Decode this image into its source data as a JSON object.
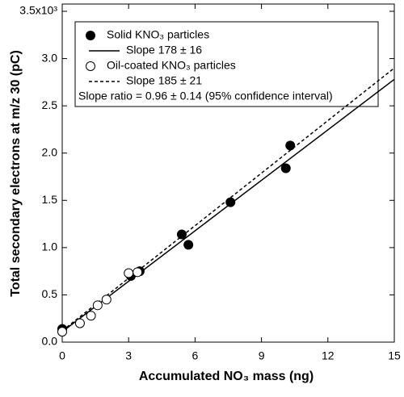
{
  "chart_data": {
    "type": "scatter",
    "xlabel": "Accumulated NO₃ mass (ng)",
    "ylabel": "Total secondary electrons at m/z 30 (pC)",
    "xlim": [
      0,
      15
    ],
    "ylim": [
      0,
      3.5
    ],
    "xticks": [
      0,
      3,
      6,
      9,
      12,
      15
    ],
    "yticks": [
      {
        "value": 0,
        "label": "0.0"
      },
      0.5,
      {
        "value": 1,
        "label": "1.0"
      },
      1.5,
      {
        "value": 2,
        "label": "2.0"
      },
      2.5,
      {
        "value": 3,
        "label": "3.0"
      },
      {
        "value": 3.5,
        "label": "3.5x10³"
      }
    ],
    "series": [
      {
        "name": "Solid KNO₃ particles",
        "marker": "filled",
        "color": "#000000",
        "x": [
          0,
          3.1,
          3.5,
          5.4,
          5.7,
          7.6,
          10.1,
          10.3
        ],
        "values": [
          0.14,
          0.7,
          0.75,
          1.14,
          1.03,
          1.48,
          1.84,
          2.08
        ]
      },
      {
        "name": "Slope 178 ± 16",
        "line": "solid",
        "color": "#000000",
        "x": [
          0,
          15
        ],
        "values": [
          0.11,
          2.78
        ]
      },
      {
        "name": "Oil-coated KNO₃ particles",
        "marker": "open",
        "color": "#000000",
        "x": [
          0,
          0.8,
          1.3,
          1.6,
          2.0,
          3.0,
          3.4
        ],
        "values": [
          0.11,
          0.2,
          0.28,
          0.39,
          0.45,
          0.73,
          0.74
        ]
      },
      {
        "name": "Slope 185 ± 21",
        "line": "dashed",
        "color": "#000000",
        "x": [
          0,
          15
        ],
        "values": [
          0.12,
          2.9
        ]
      }
    ],
    "annotation": "Slope ratio = 0.96 ± 0.14 (95% confidence interval)"
  }
}
